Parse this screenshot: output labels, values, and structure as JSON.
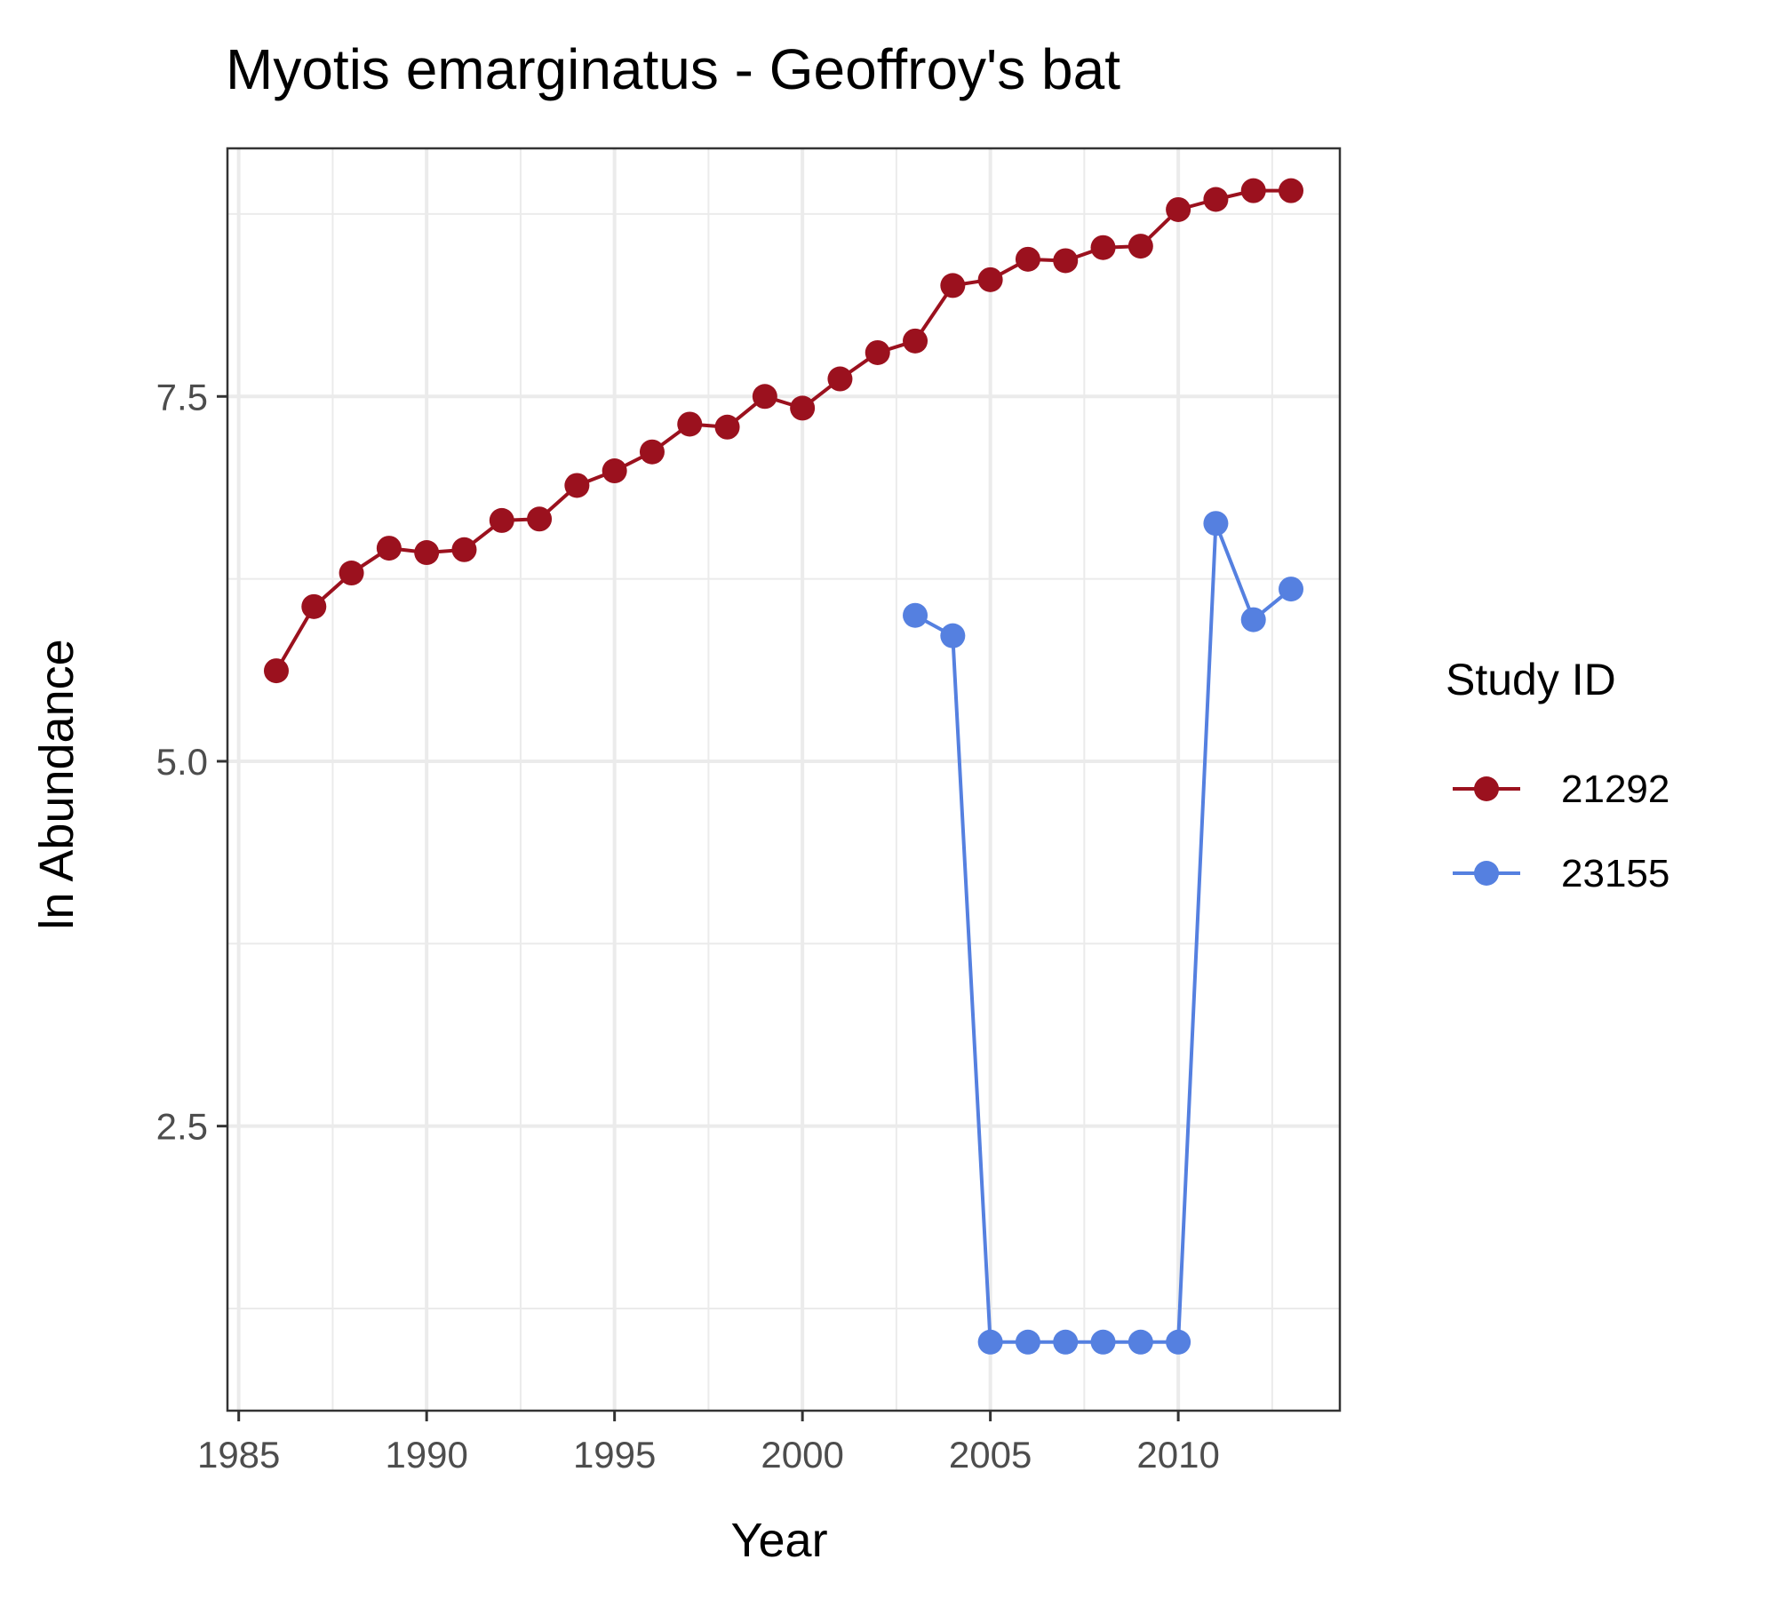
{
  "chart_data": {
    "type": "line",
    "title": "Myotis emarginatus - Geoffroy's bat",
    "xlabel": "Year",
    "ylabel": "ln Abundance",
    "xlim": [
      1984.7,
      2014.3
    ],
    "ylim": [
      0.55,
      9.2
    ],
    "x_ticks": [
      1985,
      1990,
      1995,
      2000,
      2005,
      2010
    ],
    "x_tick_labels": [
      "1985",
      "1990",
      "1995",
      "2000",
      "2005",
      "2010"
    ],
    "y_ticks": [
      2.5,
      5.0,
      7.5
    ],
    "y_tick_labels": [
      "2.5",
      "5.0",
      "7.5"
    ],
    "grid": true,
    "legend": {
      "title": "Study ID",
      "position": "right"
    },
    "series": [
      {
        "name": "21292",
        "color": "#9b111e",
        "x": [
          1986,
          1987,
          1988,
          1989,
          1990,
          1991,
          1992,
          1993,
          1994,
          1995,
          1996,
          1997,
          1998,
          1999,
          2000,
          2001,
          2002,
          2003,
          2004,
          2005,
          2006,
          2007,
          2008,
          2009,
          2010,
          2011,
          2012,
          2013
        ],
        "y": [
          5.62,
          6.06,
          6.29,
          6.46,
          6.43,
          6.45,
          6.65,
          6.66,
          6.89,
          6.99,
          7.12,
          7.31,
          7.29,
          7.5,
          7.42,
          7.62,
          7.8,
          7.88,
          8.26,
          8.3,
          8.44,
          8.43,
          8.52,
          8.53,
          8.78,
          8.85,
          8.91,
          8.91
        ]
      },
      {
        "name": "23155",
        "color": "#5580e0",
        "x": [
          2003,
          2004,
          2005,
          2006,
          2007,
          2008,
          2009,
          2010,
          2011,
          2012,
          2013
        ],
        "y": [
          6.0,
          5.86,
          1.02,
          1.02,
          1.02,
          1.02,
          1.02,
          1.02,
          6.63,
          5.97,
          6.18
        ]
      }
    ]
  }
}
